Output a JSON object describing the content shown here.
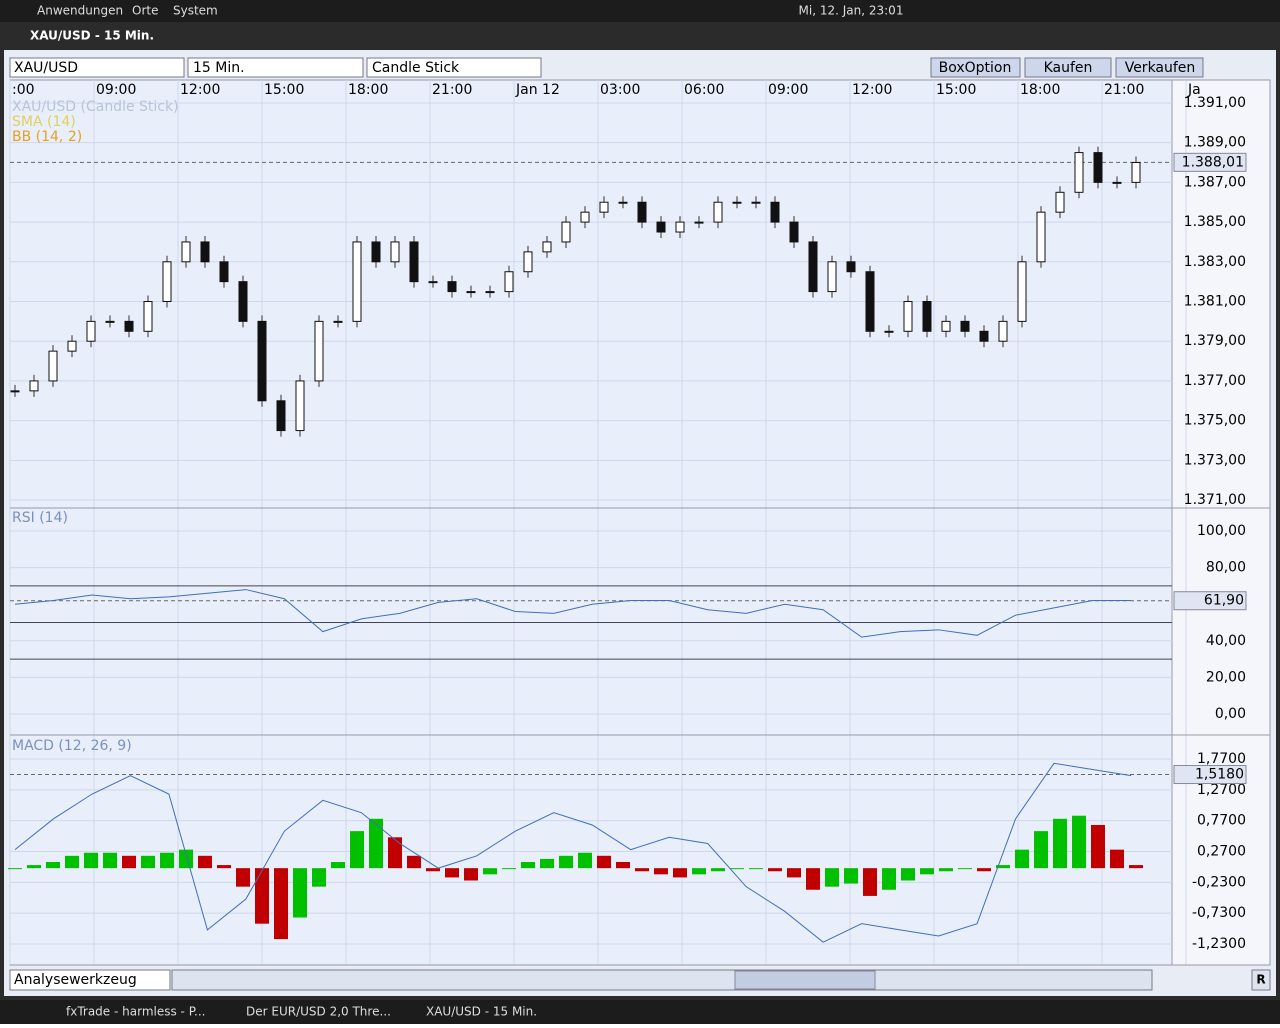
{
  "top_panel": {
    "menus": [
      "Anwendungen",
      "Orte",
      "System"
    ],
    "clock": "Mi, 12. Jan, 23:01"
  },
  "window": {
    "title": "XAU/USD - 15 Min."
  },
  "toolbar": {
    "selects": [
      "XAU/USD",
      "15 Min.",
      "Candle Stick"
    ],
    "buttons": [
      "BoxOption",
      "Kaufen",
      "Verkaufen"
    ]
  },
  "time_axis": {
    "labels": [
      ":00",
      "09:00",
      "12:00",
      "15:00",
      "18:00",
      "21:00",
      "Jan 12",
      "03:00",
      "06:00",
      "09:00",
      "12:00",
      "15:00",
      "18:00",
      "21:00",
      "Ja"
    ]
  },
  "price": {
    "type": "candlestick",
    "legend": [
      "XAU/USD (Candle Stick)",
      "SMA (14)",
      "BB (14, 2)"
    ],
    "legend_colors": [
      "#b8c4d8",
      "#e0d060",
      "#e8a020"
    ],
    "ylim": [
      1370.6,
      1391.25
    ],
    "yticks": [
      {
        "value": 1391,
        "label": "1.391,00"
      },
      {
        "value": 1389,
        "label": "1.389,00"
      },
      {
        "value": 1387,
        "label": "1.387,00"
      },
      {
        "value": 1385,
        "label": "1.385,00"
      },
      {
        "value": 1383,
        "label": "1.383,00"
      },
      {
        "value": 1381,
        "label": "1.381,00"
      },
      {
        "value": 1379,
        "label": "1.379,00"
      },
      {
        "value": 1377,
        "label": "1.377,00"
      },
      {
        "value": 1375,
        "label": "1.375,00"
      },
      {
        "value": 1373,
        "label": "1.373,00"
      },
      {
        "value": 1371,
        "label": "1.371,00"
      }
    ],
    "closes": [
      1376.5,
      1377,
      1378.5,
      1379,
      1380,
      1380,
      1379.5,
      1381,
      1383,
      1384,
      1383,
      1382,
      1380,
      1376,
      1374.5,
      1377,
      1380,
      1380,
      1384,
      1383,
      1384,
      1382,
      1382,
      1381.5,
      1381.5,
      1381.5,
      1382.5,
      1383.5,
      1384,
      1385,
      1385.5,
      1386,
      1386,
      1385,
      1384.5,
      1385,
      1385,
      1386,
      1386,
      1386,
      1385,
      1384,
      1381.5,
      1383,
      1382.5,
      1379.5,
      1379.5,
      1381,
      1379.5,
      1380,
      1379.5,
      1379,
      1380,
      1383,
      1385.5,
      1386.5,
      1388.5,
      1387,
      1387,
      1388
    ],
    "last": {
      "value": 1388.01,
      "label": "1.388,01"
    }
  },
  "rsi": {
    "type": "line",
    "title": "RSI (14)",
    "color": "#3f6fb8",
    "ylim": [
      -11.5,
      111.5
    ],
    "yticks": [
      {
        "value": 100,
        "label": "100,00"
      },
      {
        "value": 80,
        "label": "80,00"
      },
      {
        "value": 40,
        "label": "40,00"
      },
      {
        "value": 20,
        "label": "20,00"
      },
      {
        "value": 0,
        "label": "0,00"
      }
    ],
    "levels": [
      70,
      50,
      30
    ],
    "values": [
      60,
      62,
      65,
      63,
      64,
      66,
      68,
      63,
      45,
      52,
      55,
      61,
      63,
      56,
      55,
      60,
      62,
      62,
      57,
      55,
      60,
      57,
      42,
      45,
      46,
      43,
      54,
      58,
      62,
      62
    ],
    "last": {
      "value": 61.9,
      "label": "61,90"
    }
  },
  "macd": {
    "type": "bar",
    "title": "MACD (12, 26, 9)",
    "colors": [
      "#00c000",
      "#c00000"
    ],
    "line_color": "#3f6fb8",
    "ylim": [
      -1.57,
      2.11
    ],
    "yticks": [
      {
        "value": 1.77,
        "label": "1,7700"
      },
      {
        "value": 1.27,
        "label": "1,2700"
      },
      {
        "value": 0.77,
        "label": "0,7700"
      },
      {
        "value": 0.27,
        "label": "0,2700"
      },
      {
        "value": -0.23,
        "label": "-0,2300"
      },
      {
        "value": -0.73,
        "label": "-0,7300"
      },
      {
        "value": -1.23,
        "label": "-1,2300"
      }
    ],
    "histogram": [
      0,
      0.05,
      0.1,
      0.2,
      0.25,
      0.25,
      0.2,
      0.2,
      0.25,
      0.3,
      0.2,
      0.05,
      -0.3,
      -0.9,
      -1.15,
      -0.8,
      -0.3,
      0.1,
      0.6,
      0.8,
      0.5,
      0.2,
      -0.05,
      -0.15,
      -0.2,
      -0.1,
      0,
      0.1,
      0.15,
      0.2,
      0.25,
      0.2,
      0.1,
      -0.05,
      -0.1,
      -0.15,
      -0.1,
      -0.05,
      0,
      0,
      -0.05,
      -0.15,
      -0.35,
      -0.3,
      -0.25,
      -0.45,
      -0.35,
      -0.2,
      -0.1,
      -0.05,
      0,
      -0.05,
      0.05,
      0.3,
      0.6,
      0.8,
      0.85,
      0.7,
      0.3,
      0.05
    ],
    "line": [
      0.3,
      0.8,
      1.2,
      1.5,
      1.2,
      -1.0,
      -0.5,
      0.6,
      1.1,
      0.9,
      0.4,
      0.0,
      0.2,
      0.6,
      0.9,
      0.7,
      0.3,
      0.5,
      0.4,
      -0.3,
      -0.7,
      -1.2,
      -0.9,
      -1.0,
      -1.1,
      -0.9,
      0.8,
      1.7,
      1.6,
      1.5
    ],
    "last": {
      "value": 1.518,
      "label": "1,5180"
    }
  },
  "bottom": {
    "tool": "Analysewerkzeug",
    "reset": "R"
  },
  "taskbar": [
    "fxTrade - harmless - P...",
    "Der EUR/USD 2,0 Thre...",
    "XAU/USD - 15 Min."
  ]
}
